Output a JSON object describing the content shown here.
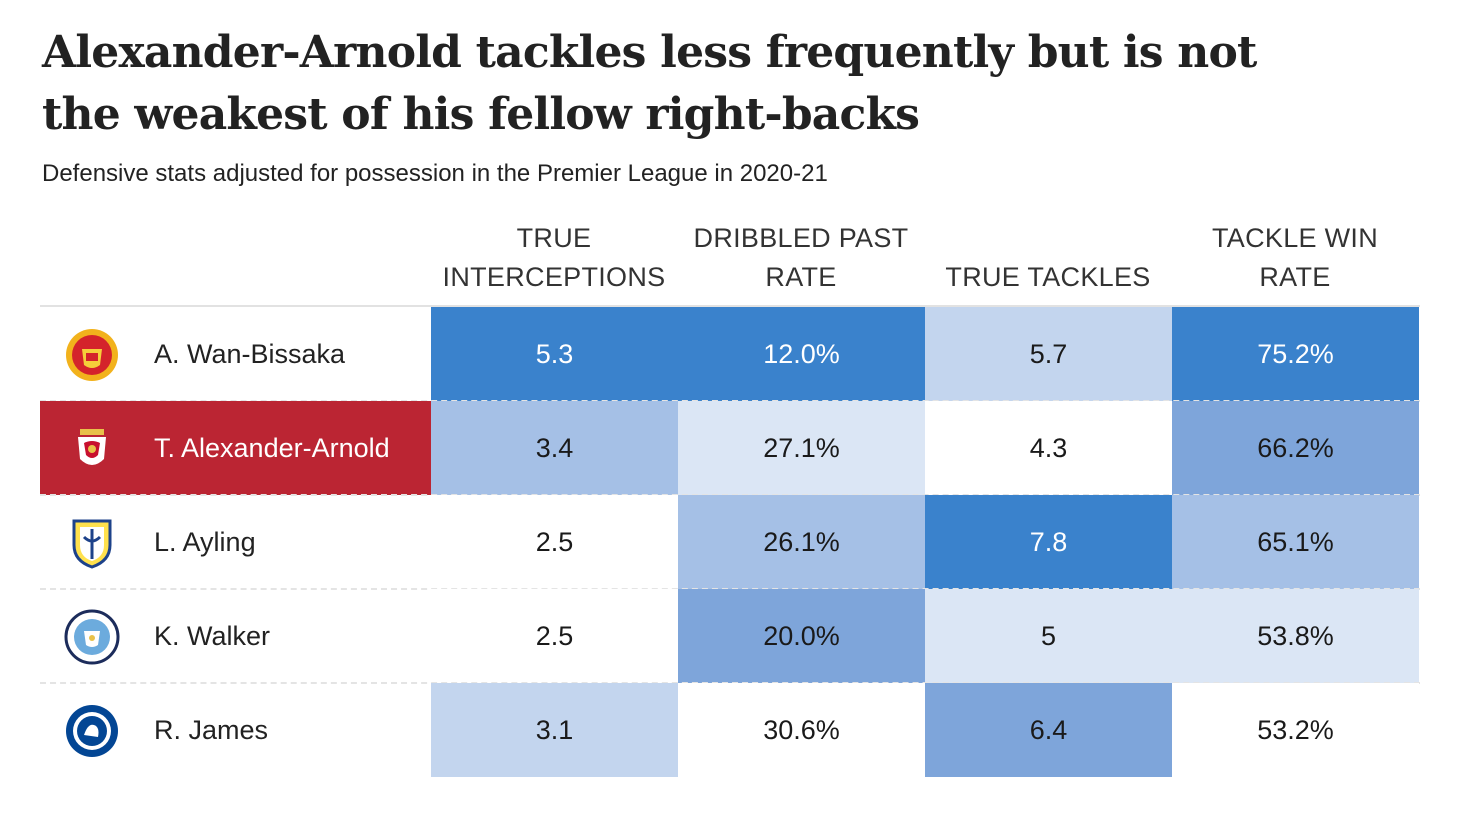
{
  "title": "Alexander-Arnold tackles less frequently but is not the weakest of his fellow right-backs",
  "subtitle": "Defensive stats adjusted for possession in the Premier League in 2020-21",
  "columns": [
    {
      "line1": "TRUE",
      "line2": "INTERCEPTIONS"
    },
    {
      "line1": "DRIBBLED PAST",
      "line2": "RATE"
    },
    {
      "line1": "",
      "line2": "TRUE TACKLES"
    },
    {
      "line1": "TACKLE WIN",
      "line2": "RATE"
    }
  ],
  "players": [
    {
      "name": "A. Wan-Bissaka",
      "club_icon": "man-utd-crest-icon",
      "highlight": false,
      "values": [
        "5.3",
        "12.0%",
        "5.7",
        "75.2%"
      ]
    },
    {
      "name": "T. Alexander-Arnold",
      "club_icon": "liverpool-crest-icon",
      "highlight": true,
      "values": [
        "3.4",
        "27.1%",
        "4.3",
        "66.2%"
      ]
    },
    {
      "name": "L. Ayling",
      "club_icon": "leeds-crest-icon",
      "highlight": false,
      "values": [
        "2.5",
        "26.1%",
        "7.8",
        "65.1%"
      ]
    },
    {
      "name": "K. Walker",
      "club_icon": "man-city-crest-icon",
      "highlight": false,
      "values": [
        "2.5",
        "20.0%",
        "5",
        "53.8%"
      ]
    },
    {
      "name": "R. James",
      "club_icon": "chelsea-crest-icon",
      "highlight": false,
      "values": [
        "3.1",
        "30.6%",
        "6.4",
        "53.2%"
      ]
    }
  ],
  "colors": {
    "highlight_row": "#bb2533",
    "scale": [
      "#ffffff",
      "#dbe6f5",
      "#c3d5ee",
      "#a5c0e6",
      "#7ea5da",
      "#3a82cc"
    ]
  },
  "cell_shade_levels": [
    [
      5,
      5,
      2,
      5
    ],
    [
      3,
      1,
      0,
      4
    ],
    [
      0,
      3,
      5,
      3
    ],
    [
      0,
      4,
      1,
      1
    ],
    [
      2,
      0,
      4,
      0
    ]
  ],
  "chart_data": {
    "type": "table",
    "title": "Alexander-Arnold tackles less frequently but is not the weakest of his fellow right-backs",
    "subtitle": "Defensive stats adjusted for possession in the Premier League in 2020-21",
    "headers": [
      "TRUE INTERCEPTIONS",
      "DRIBBLED PAST RATE",
      "TRUE TACKLES",
      "TACKLE WIN RATE"
    ],
    "rows": [
      {
        "player": "A. Wan-Bissaka",
        "true_interceptions": 5.3,
        "dribbled_past_rate": 12.0,
        "true_tackles": 5.7,
        "tackle_win_rate": 75.2
      },
      {
        "player": "T. Alexander-Arnold",
        "true_interceptions": 3.4,
        "dribbled_past_rate": 27.1,
        "true_tackles": 4.3,
        "tackle_win_rate": 66.2
      },
      {
        "player": "L. Ayling",
        "true_interceptions": 2.5,
        "dribbled_past_rate": 26.1,
        "true_tackles": 7.8,
        "tackle_win_rate": 65.1
      },
      {
        "player": "K. Walker",
        "true_interceptions": 2.5,
        "dribbled_past_rate": 20.0,
        "true_tackles": 5,
        "tackle_win_rate": 53.8
      },
      {
        "player": "R. James",
        "true_interceptions": 3.1,
        "dribbled_past_rate": 30.6,
        "true_tackles": 6.4,
        "tackle_win_rate": 53.2
      }
    ]
  }
}
